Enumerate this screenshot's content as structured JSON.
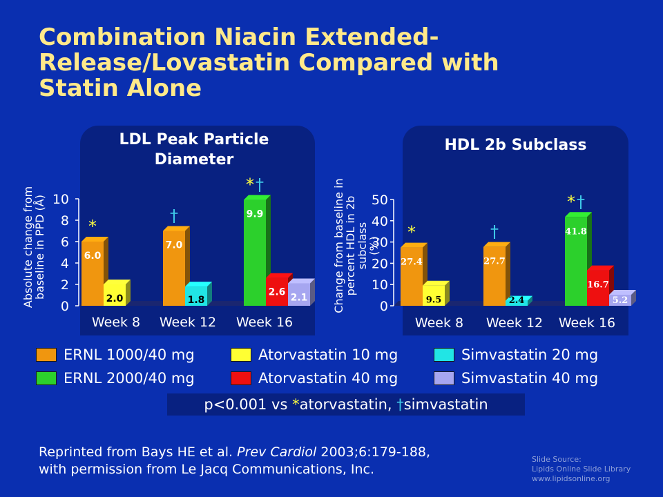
{
  "slide": {
    "title_line1": "Combination Niacin Extended-",
    "title_line2": "Release/Lovastatin Compared with",
    "title_line3": "Statin Alone",
    "pvalue_prefix": "p<0.001 vs ",
    "pvalue_star": "*",
    "pvalue_mid": "atorvastatin, ",
    "pvalue_dagger": "†",
    "pvalue_end": "simvastatin",
    "reprint_line1_pre": "Reprinted from Bays HE et al. ",
    "reprint_journal": "Prev Cardiol",
    "reprint_line1_post": " 2003;6:179-188,",
    "reprint_line2": "with permission from Le Jacq Communications, Inc.",
    "source_line1": "Slide Source:",
    "source_line2": "Lipids Online Slide Library",
    "source_line3": "www.lipidsonline.org"
  },
  "legend": [
    {
      "label": "ERNL 1000/40 mg",
      "color": "#f0960f"
    },
    {
      "label": "Atorvastatin 10 mg",
      "color": "#ffff33"
    },
    {
      "label": "Simvastatin 20 mg",
      "color": "#21e5e5"
    },
    {
      "label": "ERNL 2000/40 mg",
      "color": "#2cd02c"
    },
    {
      "label": "Atorvastatin 40 mg",
      "color": "#ee1010"
    },
    {
      "label": "Simvastatin 40 mg",
      "color": "#a6a6f0"
    }
  ],
  "chart_data": [
    {
      "type": "bar",
      "title_line1": "LDL Peak Particle",
      "title_line2": "Diameter",
      "ylabel_line1": "Absolute change from",
      "ylabel_line2": "baseline in PPD (Å)",
      "ylim": [
        0,
        10
      ],
      "yticks": [
        "0",
        "2",
        "4",
        "6",
        "8",
        "10"
      ],
      "categories": [
        "Week 8",
        "Week 12",
        "Week 16"
      ],
      "groups": [
        {
          "category": "Week 8",
          "bars": [
            {
              "series": "ERNL 1000/40 mg",
              "value": 6.0,
              "label": "6.0",
              "color": "#f0960f",
              "mark": "*"
            },
            {
              "series": "Atorvastatin 10 mg",
              "value": 2.0,
              "label": "2.0",
              "color": "#ffff33",
              "mark": ""
            }
          ]
        },
        {
          "category": "Week 12",
          "bars": [
            {
              "series": "ERNL 1000/40 mg",
              "value": 7.0,
              "label": "7.0",
              "color": "#f0960f",
              "mark": "†"
            },
            {
              "series": "Simvastatin 20 mg",
              "value": 1.8,
              "label": "1.8",
              "color": "#21e5e5",
              "mark": ""
            }
          ]
        },
        {
          "category": "Week 16",
          "bars": [
            {
              "series": "ERNL 2000/40 mg",
              "value": 9.9,
              "label": "9.9",
              "color": "#2cd02c",
              "mark": "*†"
            },
            {
              "series": "Atorvastatin 40 mg",
              "value": 2.6,
              "label": "2.6",
              "color": "#ee1010",
              "mark": ""
            },
            {
              "series": "Simvastatin 40 mg",
              "value": 2.1,
              "label": "2.1",
              "color": "#a6a6f0",
              "mark": ""
            }
          ]
        }
      ]
    },
    {
      "type": "bar",
      "title_line1": "HDL 2b Subclass",
      "title_line2": "",
      "ylabel_line1": "Change from baseline in",
      "ylabel_line2": "percent HDL in 2b subclass",
      "ylabel_line3": "(%)",
      "ylim": [
        0,
        50
      ],
      "yticks": [
        "0",
        "10",
        "20",
        "30",
        "40",
        "50"
      ],
      "categories": [
        "Week 8",
        "Week 12",
        "Week 16"
      ],
      "groups": [
        {
          "category": "Week 8",
          "bars": [
            {
              "series": "ERNL 1000/40 mg",
              "value": 27.4,
              "label": "27.4",
              "color": "#f0960f",
              "mark": "*"
            },
            {
              "series": "Atorvastatin 10 mg",
              "value": 9.5,
              "label": "9.5",
              "color": "#ffff33",
              "mark": ""
            }
          ]
        },
        {
          "category": "Week 12",
          "bars": [
            {
              "series": "ERNL 1000/40 mg",
              "value": 27.7,
              "label": "27.7",
              "color": "#f0960f",
              "mark": "†"
            },
            {
              "series": "Simvastatin 20 mg",
              "value": 2.4,
              "label": "2.4",
              "color": "#21e5e5",
              "mark": ""
            }
          ]
        },
        {
          "category": "Week 16",
          "bars": [
            {
              "series": "ERNL 2000/40 mg",
              "value": 41.8,
              "label": "41.8",
              "color": "#2cd02c",
              "mark": "*†"
            },
            {
              "series": "Atorvastatin 40 mg",
              "value": 16.7,
              "label": "16.7",
              "color": "#ee1010",
              "mark": ""
            },
            {
              "series": "Simvastatin 40 mg",
              "value": 5.2,
              "label": "5.2",
              "color": "#a6a6f0",
              "mark": ""
            }
          ]
        }
      ]
    }
  ]
}
